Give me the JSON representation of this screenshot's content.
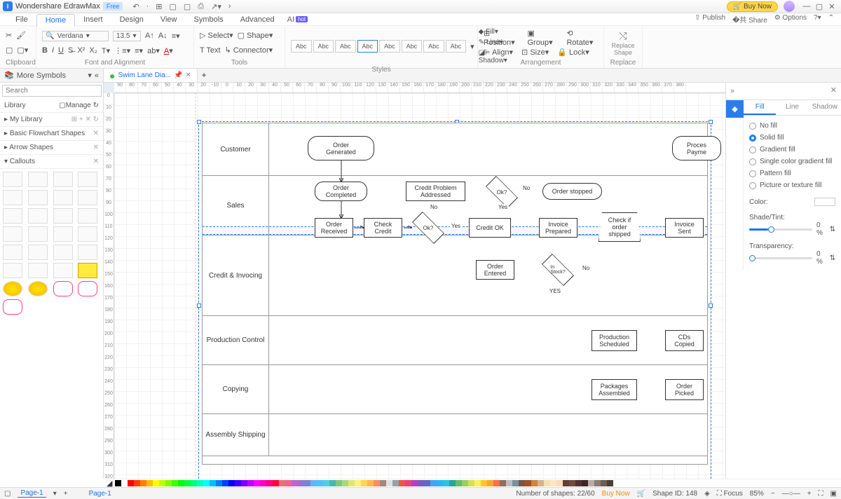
{
  "app": {
    "name": "Wondershare EdrawMax",
    "badge": "Free"
  },
  "titlebar": {
    "buy": "Buy Now"
  },
  "menu": {
    "items": [
      "File",
      "Home",
      "Insert",
      "Design",
      "View",
      "Symbols",
      "Advanced"
    ],
    "active": 1,
    "ai": "AI",
    "hot": "hot",
    "right": {
      "publish": "Publish",
      "share": "Share",
      "options": "Options"
    }
  },
  "ribbon": {
    "font": {
      "name": "Verdana",
      "size": "13.5"
    },
    "groups": {
      "clipboard": "Clipboard",
      "font": "Font and Alignment",
      "tools": "Tools",
      "styles": "Styles",
      "arrange": "Arrangement",
      "replace": "Replace"
    },
    "tools": {
      "select": "Select",
      "shape": "Shape",
      "text": "Text",
      "connector": "Connector"
    },
    "style_items": {
      "abc": "Abc",
      "fill": "Fill",
      "line": "Line",
      "shadow": "Shadow"
    },
    "arrange": {
      "position": "Position",
      "group": "Group",
      "rotate": "Rotate",
      "align": "Align",
      "size": "Size",
      "lock": "Lock"
    },
    "replace": "Replace\nShape"
  },
  "leftpanel": {
    "title": "More Symbols",
    "search": {
      "placeholder": "Search",
      "btn": "Search"
    },
    "library": "Library",
    "manage": "Manage",
    "cats": [
      "My Library",
      "Basic Flowchart Shapes",
      "Arrow Shapes",
      "Callouts"
    ]
  },
  "doc": {
    "tab": "Swim Lane Dia..."
  },
  "swimlanes": {
    "lanes": [
      "Customer",
      "Sales",
      "Credit & Invocing",
      "Production Control",
      "Copying",
      "Assembly Shipping"
    ],
    "nodes": {
      "order_generated": "Order\nGenerated",
      "order_completed": "Order\nCompleted",
      "credit_problem": "Credit Problem\nAddressed",
      "ok1": "Ok?",
      "order_stopped": "Order stopped",
      "process_payment": "Proces\nPayme",
      "order_received": "Order\nReceived",
      "check_credit": "Check\nCredit",
      "ok2": "Ok?",
      "credit_ok": "Credit OK",
      "invoice_prepared": "Invoice\nPrepared",
      "check_shipped": "Check if\norder\nshipped",
      "invoice_sent": "Invoice\nSent",
      "order_entered": "Order\nEntered",
      "in_stock": "In\nStock?",
      "production_scheduled": "Production\nScheduled",
      "cds_copied": "CDs\nCopied",
      "packages_assembled": "Packages\nAssembled",
      "order_picked": "Order\nPicked"
    },
    "edge_labels": {
      "no1": "No",
      "yes1": "Yes",
      "no2": "No",
      "yes2": "Yes",
      "no3": "No",
      "yes3": "YES"
    }
  },
  "rightpanel": {
    "tabs": [
      "Fill",
      "Line",
      "Shadow"
    ],
    "active": 0,
    "opts": [
      "No fill",
      "Solid fill",
      "Gradient fill",
      "Single color gradient fill",
      "Pattern fill",
      "Picture or texture fill"
    ],
    "selected": 1,
    "color_label": "Color:",
    "shade_label": "Shade/Tint:",
    "shade_val": "0 %",
    "transp_label": "Transparency:",
    "transp_val": "0 %"
  },
  "colorbar": [
    "#000000",
    "#ffffff",
    "#ff0000",
    "#ff4000",
    "#ff8000",
    "#ffbf00",
    "#ffff00",
    "#bfff00",
    "#80ff00",
    "#40ff00",
    "#00ff00",
    "#00ff40",
    "#00ff80",
    "#00ffbf",
    "#00ffff",
    "#00bfff",
    "#0080ff",
    "#0040ff",
    "#0000ff",
    "#4000ff",
    "#8000ff",
    "#bf00ff",
    "#ff00ff",
    "#ff00bf",
    "#ff0080",
    "#ff0040",
    "#e57373",
    "#f06292",
    "#ba68c8",
    "#9575cd",
    "#7986cb",
    "#64b5f6",
    "#4fc3f7",
    "#4dd0e1",
    "#4db6ac",
    "#81c784",
    "#aed581",
    "#dce775",
    "#fff176",
    "#ffd54f",
    "#ffb74d",
    "#ff8a65",
    "#a1887f",
    "#e0e0e0",
    "#90a4ae",
    "#ef5350",
    "#ec407a",
    "#ab47bc",
    "#7e57c2",
    "#5c6bc0",
    "#42a5f5",
    "#29b6f6",
    "#26c6da",
    "#26a69a",
    "#66bb6a",
    "#9ccc65",
    "#d4e157",
    "#ffee58",
    "#ffca28",
    "#ffa726",
    "#ff7043",
    "#8d6e63",
    "#bdbdbd",
    "#78909c",
    "#795548",
    "#a0522d",
    "#cd853f",
    "#d2b48c",
    "#f5deb3",
    "#ffe4c4",
    "#ffdab9",
    "#5d4037",
    "#6d4c41",
    "#4e342e",
    "#3e2723",
    "#bcaaa4",
    "#8c7b75",
    "#6a5d52",
    "#4a3f37"
  ],
  "status": {
    "page": "Page-1",
    "shapes": "Number of shapes: 22/60",
    "buy": "Buy Now",
    "shape_id": "Shape ID: 148",
    "focus": "Focus",
    "zoom": "85%"
  },
  "ruler_h": [
    "90",
    "80",
    "70",
    "60",
    "50",
    "40",
    "30",
    "20",
    "-10",
    "0",
    "10",
    "20",
    "30",
    "40",
    "50",
    "60",
    "70",
    "80",
    "90",
    "100",
    "110",
    "120",
    "130",
    "140",
    "150",
    "160",
    "170",
    "180",
    "190",
    "200",
    "210",
    "220",
    "230",
    "240",
    "250",
    "260",
    "270",
    "280",
    "290",
    "300",
    "310",
    "320",
    "330",
    "340",
    "350",
    "360",
    "370",
    "380"
  ],
  "ruler_v": [
    "0",
    "10",
    "20",
    "30",
    "40",
    "50",
    "60",
    "70",
    "80",
    "90",
    "100",
    "110",
    "120",
    "130",
    "140",
    "150",
    "160",
    "170",
    "180",
    "190",
    "200",
    "210",
    "220",
    "230",
    "240",
    "250",
    "260",
    "270",
    "280",
    "290",
    "300",
    "310",
    "320"
  ]
}
